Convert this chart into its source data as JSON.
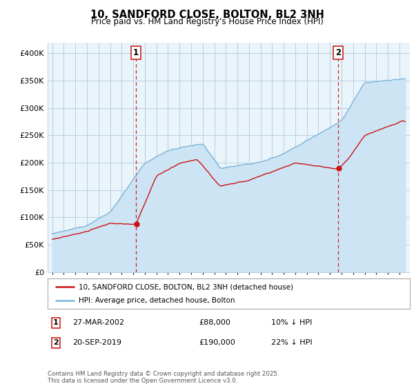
{
  "title": "10, SANDFORD CLOSE, BOLTON, BL2 3NH",
  "subtitle": "Price paid vs. HM Land Registry's House Price Index (HPI)",
  "ylim": [
    0,
    420000
  ],
  "yticks": [
    0,
    50000,
    100000,
    150000,
    200000,
    250000,
    300000,
    350000,
    400000
  ],
  "ytick_labels": [
    "£0",
    "£50K",
    "£100K",
    "£150K",
    "£200K",
    "£250K",
    "£300K",
    "£350K",
    "£400K"
  ],
  "hpi_color": "#7ab4d8",
  "hpi_fill_color": "#cce4f4",
  "price_color": "#cc1111",
  "vline_color": "#cc2222",
  "marker1_date": 2002.23,
  "marker2_date": 2019.72,
  "marker1_price": 88000,
  "marker2_price": 190000,
  "transaction1": [
    "1",
    "27-MAR-2002",
    "£88,000",
    "10% ↓ HPI"
  ],
  "transaction2": [
    "2",
    "20-SEP-2019",
    "£190,000",
    "22% ↓ HPI"
  ],
  "legend1": "10, SANDFORD CLOSE, BOLTON, BL2 3NH (detached house)",
  "legend2": "HPI: Average price, detached house, Bolton",
  "footnote": "Contains HM Land Registry data © Crown copyright and database right 2025.\nThis data is licensed under the Open Government Licence v3.0.",
  "bg_color": "#ffffff",
  "plot_bg_color": "#eaf4fb",
  "grid_color": "#b0c8dc"
}
